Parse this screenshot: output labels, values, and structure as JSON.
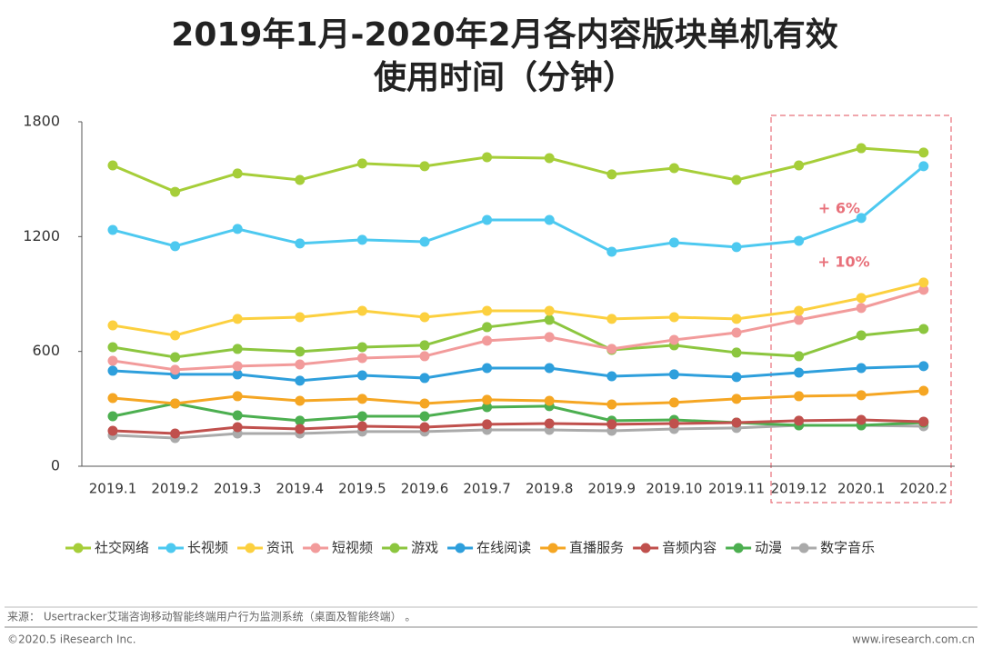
{
  "chart_data": {
    "type": "line",
    "title": [
      "2019年1月-2020年2月各内容版块单机有效",
      "使用时间（分钟）"
    ],
    "categories": [
      "2019.1",
      "2019.2",
      "2019.3",
      "2019.4",
      "2019.5",
      "2019.6",
      "2019.7",
      "2019.8",
      "2019.9",
      "2019.10",
      "2019.11",
      "2019.12",
      "2020.1",
      "2020.2"
    ],
    "ylim": [
      0,
      1800
    ],
    "yticks": [
      0,
      600,
      1200,
      1800
    ],
    "grid": false,
    "legend": "bottom",
    "series": [
      {
        "name": "社交网络",
        "color": "#a6ce39",
        "values": [
          1572,
          1434,
          1530,
          1496,
          1582,
          1568,
          1615,
          1610,
          1525,
          1558,
          1496,
          1572,
          1662,
          1639
        ]
      },
      {
        "name": "长视频",
        "color": "#4dc9f0",
        "values": [
          1235,
          1150,
          1240,
          1164,
          1183,
          1173,
          1287,
          1287,
          1121,
          1169,
          1145,
          1178,
          1297,
          1568
        ]
      },
      {
        "name": "资讯",
        "color": "#fcd03f",
        "values": [
          736,
          684,
          770,
          779,
          812,
          779,
          812,
          812,
          770,
          779,
          770,
          812,
          879,
          960
        ]
      },
      {
        "name": "短视频",
        "color": "#f29b9b",
        "values": [
          551,
          504,
          523,
          532,
          565,
          575,
          656,
          675,
          613,
          660,
          698,
          765,
          827,
          922
        ]
      },
      {
        "name": "游戏",
        "color": "#8cc63f",
        "values": [
          622,
          570,
          613,
          599,
          622,
          632,
          727,
          765,
          608,
          632,
          594,
          575,
          684,
          717
        ]
      },
      {
        "name": "在线阅读",
        "color": "#2e9fdc",
        "values": [
          499,
          480,
          480,
          447,
          475,
          461,
          513,
          513,
          470,
          480,
          466,
          489,
          513,
          523
        ]
      },
      {
        "name": "直播服务",
        "color": "#f5a623",
        "values": [
          356,
          328,
          366,
          342,
          352,
          328,
          347,
          342,
          323,
          333,
          352,
          366,
          371,
          394
        ]
      },
      {
        "name": "音频内容",
        "color": "#c0504d",
        "values": [
          185,
          171,
          204,
          195,
          209,
          204,
          219,
          223,
          219,
          223,
          228,
          238,
          242,
          233
        ]
      },
      {
        "name": "动漫",
        "color": "#4caf50",
        "values": [
          261,
          328,
          266,
          238,
          261,
          261,
          309,
          314,
          238,
          242,
          228,
          214,
          214,
          228
        ]
      },
      {
        "name": "数字音乐",
        "color": "#aaaaaa",
        "values": [
          162,
          147,
          171,
          171,
          181,
          181,
          190,
          190,
          185,
          195,
          200,
          214,
          214,
          209
        ]
      }
    ],
    "annotations": [
      "+ 6%",
      "+ 10%"
    ]
  },
  "footer": {
    "source": "来源： Usertracker艾瑞咨询移动智能终端用户行为监测系统（桌面及智能终端） 。",
    "copyright": "©2020.5 iResearch Inc.",
    "website": "www.iresearch.com.cn"
  }
}
